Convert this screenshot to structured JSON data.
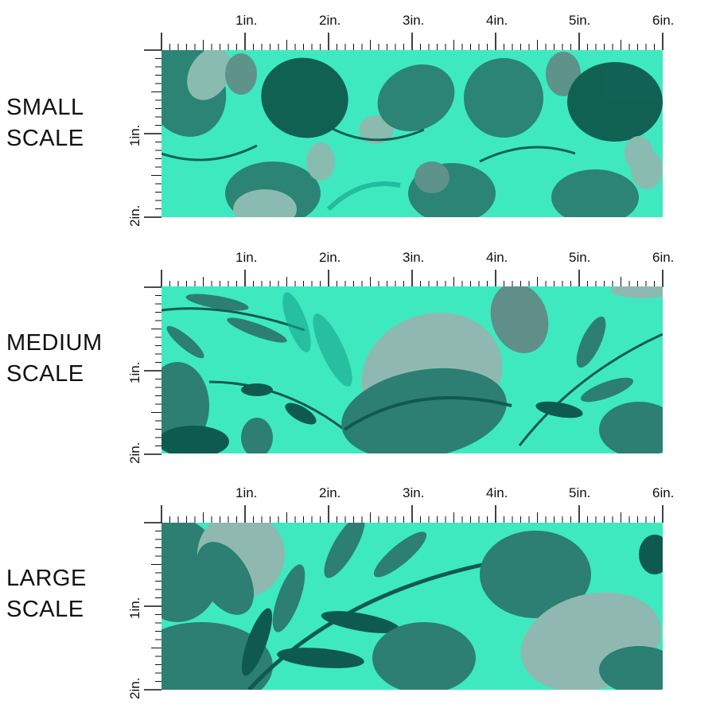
{
  "colors": {
    "background_mint": "#3ee9c0",
    "leaf_dark": "#0f5a4e",
    "leaf_mid": "#2c7f72",
    "leaf_light": "#8fb9b0",
    "leaf_teal": "#17a58a"
  },
  "ruler": {
    "top_labels": [
      "1in.",
      "2in.",
      "3in.",
      "4in.",
      "5in.",
      "6in."
    ],
    "side_labels": [
      "1in.",
      "2in."
    ]
  },
  "panels": [
    {
      "label_line1": "SMALL",
      "label_line2": "SCALE",
      "pattern": "small"
    },
    {
      "label_line1": "MEDIUM",
      "label_line2": "SCALE",
      "pattern": "medium"
    },
    {
      "label_line1": "LARGE",
      "label_line2": "SCALE",
      "pattern": "large"
    }
  ]
}
